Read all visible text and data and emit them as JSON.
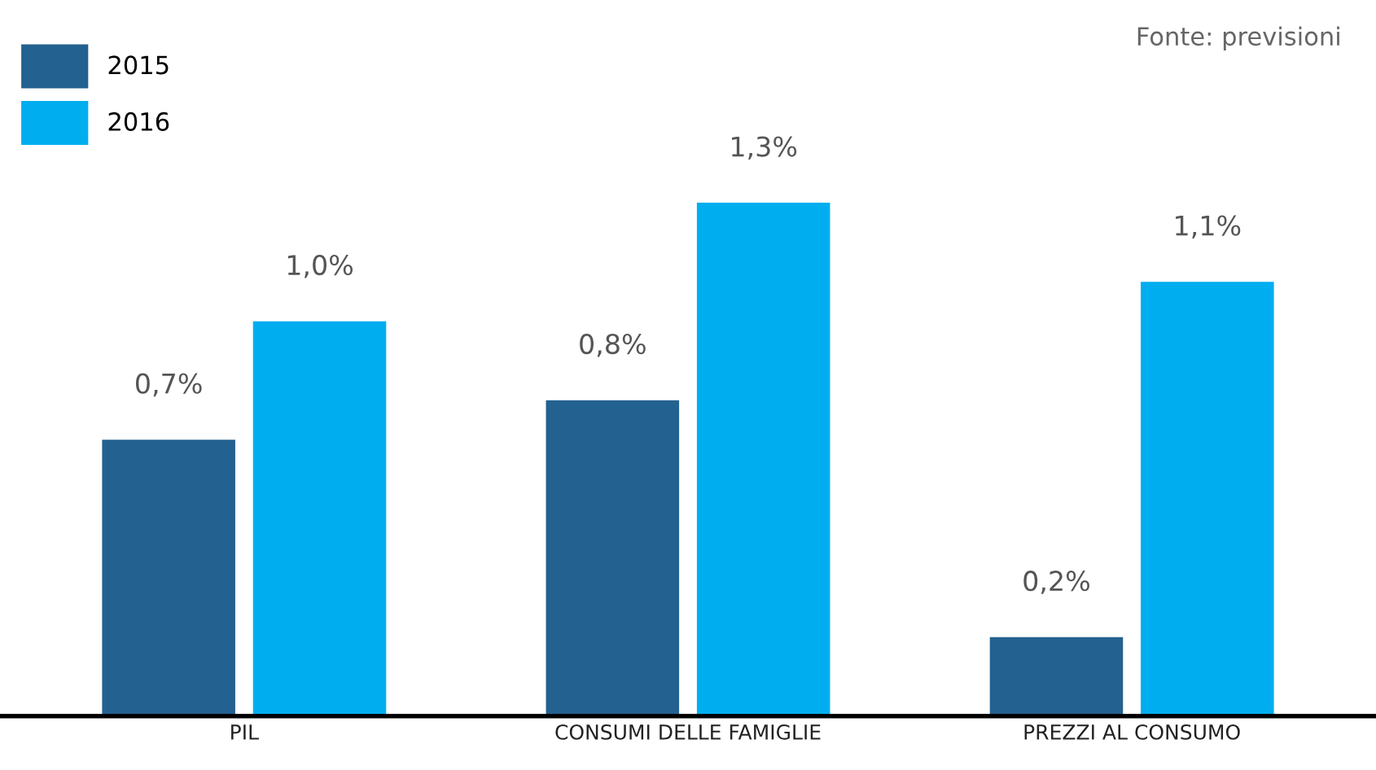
{
  "chart_data": {
    "type": "bar",
    "categories": [
      "PIL",
      "CONSUMI DELLE FAMIGLIE",
      "PREZZI AL CONSUMO"
    ],
    "series": [
      {
        "name": "2015",
        "color": "#236190",
        "values": [
          0.7,
          0.8,
          0.2
        ],
        "value_labels": [
          "0,7%",
          "0,8%",
          "0,2%"
        ]
      },
      {
        "name": "2016",
        "color": "#00aeef",
        "values": [
          1.0,
          1.3,
          1.1
        ],
        "value_labels": [
          "1,0%",
          "1,3%",
          "1,1%"
        ]
      }
    ],
    "annotations": [
      "Fonte: previsioni"
    ],
    "legend": "top left",
    "grid": false
  }
}
